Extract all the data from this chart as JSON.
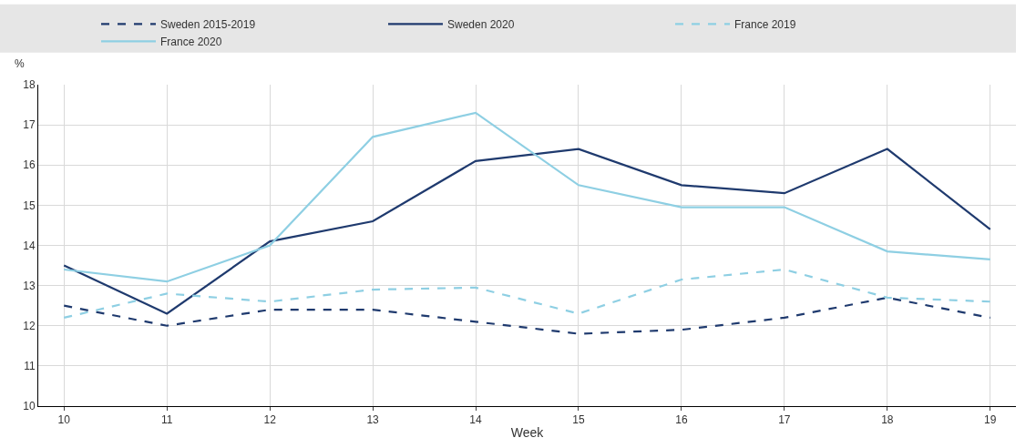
{
  "chart_data": {
    "type": "line",
    "xlabel": "Week",
    "ylabel": "%",
    "x": [
      10,
      11,
      12,
      13,
      14,
      15,
      16,
      17,
      18,
      19
    ],
    "xlim": [
      9.75,
      19.25
    ],
    "xticks": [
      10,
      11,
      12,
      13,
      14,
      15,
      16,
      17,
      18,
      19
    ],
    "ylim": [
      10,
      18
    ],
    "yticks": [
      10,
      11,
      12,
      13,
      14,
      15,
      16,
      17,
      18
    ],
    "grid": true,
    "legend": "top",
    "marker": "none",
    "series": [
      {
        "name": "Sweden 2015-2019",
        "color": "#1f3a6e",
        "line_style": "dashed",
        "values": [
          12.5,
          12.0,
          12.4,
          12.4,
          12.1,
          11.8,
          11.9,
          12.2,
          12.7,
          12.2
        ]
      },
      {
        "name": "Sweden 2020",
        "color": "#1f3a6e",
        "line_style": "solid",
        "values": [
          13.5,
          12.3,
          14.1,
          14.6,
          16.1,
          16.4,
          15.5,
          15.3,
          16.4,
          14.4
        ]
      },
      {
        "name": "France 2019",
        "color": "#8ecfe3",
        "line_style": "dashed",
        "values": [
          12.2,
          12.8,
          12.6,
          12.9,
          12.95,
          12.3,
          13.15,
          13.4,
          12.7,
          12.6
        ]
      },
      {
        "name": "France 2020",
        "color": "#8ecfe3",
        "line_style": "solid",
        "values": [
          13.4,
          13.1,
          14.0,
          16.7,
          17.3,
          15.5,
          14.95,
          14.95,
          13.85,
          13.65
        ]
      }
    ]
  }
}
